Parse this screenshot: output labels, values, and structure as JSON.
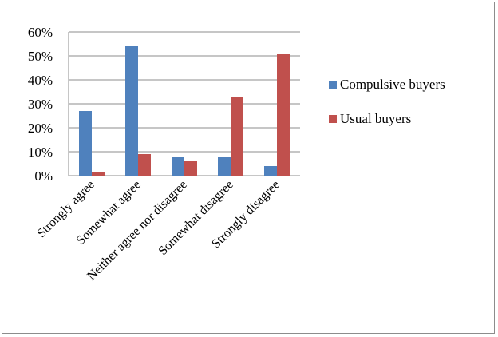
{
  "chart_data": {
    "type": "bar",
    "categories": [
      "Strongly agree",
      "Somewhat agree",
      "Neither agree nor disagree",
      "Somewhat disagree",
      "Strongly disagree"
    ],
    "series": [
      {
        "name": "Compulsive buyers",
        "values": [
          27,
          54,
          8,
          8,
          4
        ],
        "color": "#4f81bd"
      },
      {
        "name": "Usual buyers",
        "values": [
          1.5,
          9,
          6,
          33,
          51
        ],
        "color": "#c0504d"
      }
    ],
    "yticks": [
      "0%",
      "10%",
      "20%",
      "30%",
      "40%",
      "50%",
      "60%"
    ],
    "ylim": [
      0,
      60
    ],
    "grid": true,
    "legend_position": "right",
    "title": "",
    "xlabel": "",
    "ylabel": ""
  }
}
